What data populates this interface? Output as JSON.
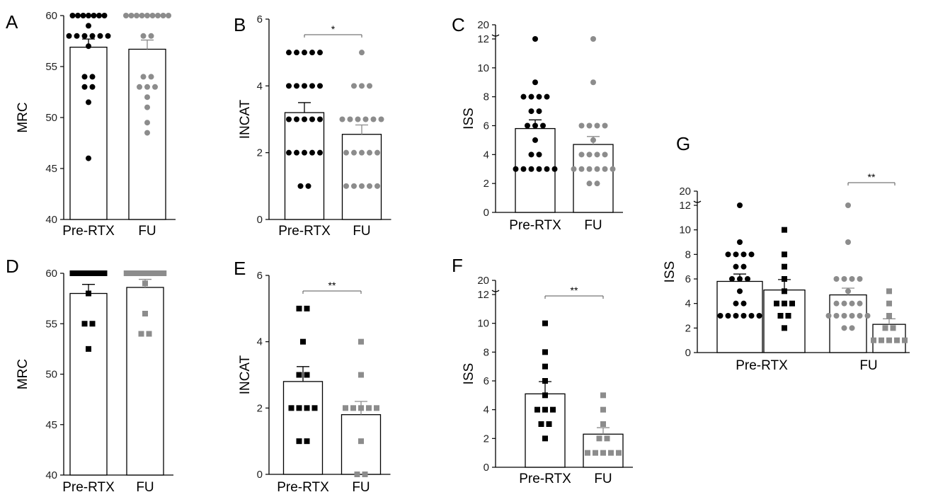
{
  "chart_data": [
    {
      "id": "A",
      "panel": "A",
      "type": "bar",
      "ylabel": "MRC",
      "ylim": [
        40,
        60
      ],
      "yticks": [
        40,
        45,
        50,
        55,
        60
      ],
      "categories": [
        "Pre-RTX",
        "FU"
      ],
      "marker": "circle",
      "series": [
        {
          "category": "Pre-RTX",
          "mean": 56.9,
          "sem": 0.8,
          "color": "#000000",
          "points": [
            60,
            60,
            60,
            60,
            60,
            60,
            60,
            59,
            58,
            58,
            58,
            58,
            58,
            58,
            57,
            54,
            54,
            53,
            53,
            51.5,
            46
          ]
        },
        {
          "category": "FU",
          "mean": 56.7,
          "sem": 0.9,
          "color": "#8c8c8c",
          "points": [
            60,
            60,
            60,
            60,
            60,
            60,
            60,
            60,
            60,
            58,
            58,
            54,
            54,
            53,
            53,
            53,
            52,
            51,
            49.5,
            48.5
          ]
        }
      ],
      "significance": null
    },
    {
      "id": "B",
      "panel": "B",
      "type": "bar",
      "ylabel": "INCAT",
      "ylim": [
        0,
        6
      ],
      "yticks": [
        0,
        2,
        4,
        6
      ],
      "categories": [
        "Pre-RTX",
        "FU"
      ],
      "marker": "circle",
      "series": [
        {
          "category": "Pre-RTX",
          "mean": 3.2,
          "sem": 0.3,
          "color": "#000000",
          "points": [
            5,
            5,
            5,
            5,
            5,
            4,
            4,
            4,
            4,
            4,
            3,
            3,
            3,
            3,
            3,
            2,
            2,
            2,
            2,
            2,
            1,
            1
          ]
        },
        {
          "category": "FU",
          "mean": 2.55,
          "sem": 0.28,
          "color": "#8c8c8c",
          "points": [
            5,
            4,
            4,
            4,
            3,
            3,
            3,
            3,
            3,
            3,
            2,
            2,
            2,
            2,
            2,
            1,
            1,
            1,
            1,
            1
          ]
        }
      ],
      "significance": "*"
    },
    {
      "id": "C",
      "panel": "C",
      "type": "bar",
      "ylabel": "ISS",
      "ylim": [
        0,
        12
      ],
      "axis_break_top": 20,
      "yticks": [
        0,
        2,
        4,
        6,
        8,
        10,
        12
      ],
      "categories": [
        "Pre-RTX",
        "FU"
      ],
      "marker": "circle",
      "series": [
        {
          "category": "Pre-RTX",
          "mean": 5.8,
          "sem": 0.6,
          "color": "#000000",
          "points": [
            12,
            9,
            8,
            8,
            8,
            8,
            7,
            7,
            6,
            6,
            6,
            5,
            4,
            4,
            3,
            3,
            3,
            3,
            3,
            3
          ]
        },
        {
          "category": "FU",
          "mean": 4.7,
          "sem": 0.55,
          "color": "#8c8c8c",
          "points": [
            12,
            9,
            6,
            6,
            6,
            6,
            5,
            4,
            4,
            4,
            4,
            3,
            3,
            3,
            3,
            3,
            3,
            2,
            2
          ]
        }
      ],
      "significance": null
    },
    {
      "id": "D",
      "panel": "D",
      "type": "bar",
      "ylabel": "MRC",
      "ylim": [
        40,
        60
      ],
      "yticks": [
        40,
        45,
        50,
        55,
        60
      ],
      "categories": [
        "Pre-RTX",
        "FU"
      ],
      "marker": "square",
      "series": [
        {
          "category": "Pre-RTX",
          "mean": 58.0,
          "sem": 0.9,
          "color": "#000000",
          "points": [
            60,
            60,
            60,
            60,
            60,
            60,
            60,
            58,
            55,
            55,
            52.5
          ]
        },
        {
          "category": "FU",
          "mean": 58.6,
          "sem": 0.8,
          "color": "#8c8c8c",
          "points": [
            60,
            60,
            60,
            60,
            60,
            60,
            60,
            60,
            59,
            56,
            54,
            54
          ]
        }
      ],
      "significance": null
    },
    {
      "id": "E",
      "panel": "E",
      "type": "bar",
      "ylabel": "INCAT",
      "ylim": [
        0,
        6
      ],
      "yticks": [
        0,
        2,
        4,
        6
      ],
      "categories": [
        "Pre-RTX",
        "FU"
      ],
      "marker": "square",
      "series": [
        {
          "category": "Pre-RTX",
          "mean": 2.8,
          "sem": 0.45,
          "color": "#000000",
          "points": [
            5,
            5,
            4,
            3,
            3,
            2,
            2,
            2,
            2,
            1,
            1
          ]
        },
        {
          "category": "FU",
          "mean": 1.8,
          "sem": 0.4,
          "color": "#8c8c8c",
          "points": [
            4,
            3,
            2,
            2,
            2,
            2,
            2,
            1,
            0,
            0
          ]
        }
      ],
      "significance": "**"
    },
    {
      "id": "F",
      "panel": "F",
      "type": "bar",
      "ylabel": "ISS",
      "ylim": [
        0,
        12
      ],
      "axis_break_top": 20,
      "yticks": [
        0,
        2,
        4,
        6,
        8,
        10,
        12
      ],
      "categories": [
        "Pre-RTX",
        "FU"
      ],
      "marker": "square",
      "series": [
        {
          "category": "Pre-RTX",
          "mean": 5.1,
          "sem": 0.85,
          "color": "#000000",
          "points": [
            10,
            8,
            7,
            6,
            5,
            4,
            4,
            4,
            3,
            3,
            2
          ]
        },
        {
          "category": "FU",
          "mean": 2.3,
          "sem": 0.45,
          "color": "#8c8c8c",
          "points": [
            5,
            4,
            3,
            2,
            2,
            1,
            1,
            1,
            1,
            1
          ]
        }
      ],
      "significance": "**"
    },
    {
      "id": "G",
      "panel": "G",
      "type": "bar",
      "ylabel": "ISS",
      "ylim": [
        0,
        12
      ],
      "axis_break_top": 20,
      "yticks": [
        0,
        2,
        4,
        6,
        8,
        10,
        12
      ],
      "categories": [
        "Pre-RTX",
        "FU"
      ],
      "grouped": true,
      "series": [
        {
          "category": "Pre-RTX",
          "mean": 5.8,
          "sem": 0.6,
          "color": "#000000",
          "marker": "circle",
          "points": [
            12,
            9,
            8,
            8,
            8,
            8,
            7,
            7,
            6,
            6,
            6,
            5,
            4,
            4,
            3,
            3,
            3,
            3,
            3,
            3
          ]
        },
        {
          "category": "Pre-RTX",
          "mean": 5.1,
          "sem": 0.85,
          "color": "#000000",
          "marker": "square",
          "points": [
            10,
            8,
            7,
            6,
            5,
            4,
            4,
            4,
            3,
            3,
            2
          ]
        },
        {
          "category": "FU",
          "mean": 4.7,
          "sem": 0.55,
          "color": "#8c8c8c",
          "marker": "circle",
          "points": [
            12,
            9,
            6,
            6,
            6,
            6,
            5,
            4,
            4,
            4,
            4,
            3,
            3,
            3,
            3,
            3,
            3,
            2,
            2
          ]
        },
        {
          "category": "FU",
          "mean": 2.3,
          "sem": 0.45,
          "color": "#8c8c8c",
          "marker": "square",
          "points": [
            5,
            4,
            3,
            2,
            2,
            1,
            1,
            1,
            1,
            1
          ]
        }
      ],
      "significance": "**"
    }
  ]
}
